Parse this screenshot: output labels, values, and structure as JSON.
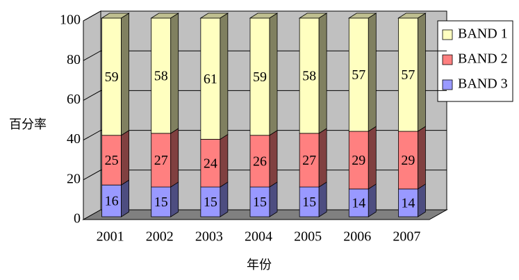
{
  "chart_data": {
    "type": "stacked-bar-3d",
    "x_label": "年份",
    "y_label": "百分率",
    "categories": [
      "2001",
      "2002",
      "2003",
      "2004",
      "2005",
      "2006",
      "2007"
    ],
    "series": [
      {
        "name": "BAND 1",
        "color": "#ffffc0",
        "values": [
          59,
          58,
          61,
          59,
          58,
          57,
          57
        ]
      },
      {
        "name": "BAND 2",
        "color": "#ff8080",
        "values": [
          25,
          27,
          24,
          26,
          27,
          29,
          29
        ]
      },
      {
        "name": "BAND 3",
        "color": "#9999ff",
        "values": [
          16,
          15,
          15,
          15,
          15,
          14,
          14
        ]
      }
    ],
    "ylim": [
      0,
      100
    ],
    "yticks": [
      0,
      20,
      40,
      60,
      80,
      100
    ],
    "grid": true,
    "legend": "right"
  }
}
